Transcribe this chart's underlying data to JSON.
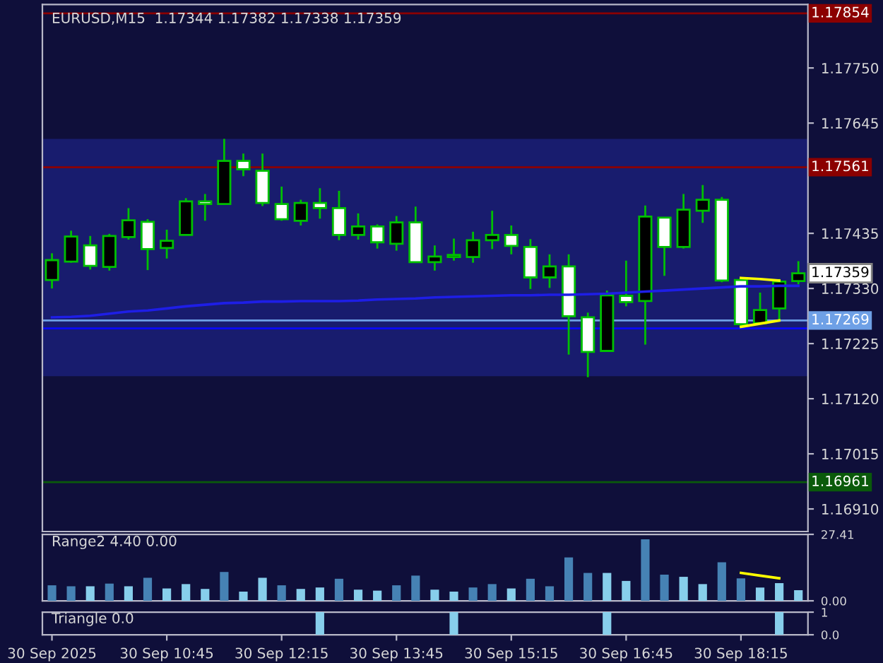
{
  "chart_data": [
    {
      "type": "candlestick",
      "title": "EURUSD,M15  1.17344 1.17382 1.17338 1.17359",
      "categories": [
        null,
        null,
        null,
        null,
        null,
        null,
        null,
        null,
        null,
        null,
        null,
        null,
        null,
        null,
        null,
        null,
        null,
        null,
        null,
        null,
        null,
        null,
        null,
        null,
        null,
        null,
        null,
        null,
        null,
        null,
        null,
        null,
        null,
        null,
        null,
        null,
        null,
        null,
        null,
        null
      ],
      "ohlc": [
        [
          1.17346,
          1.17397,
          1.1733,
          1.17384
        ],
        [
          1.17381,
          1.1744,
          1.17379,
          1.17429
        ],
        [
          1.17412,
          1.1743,
          1.17366,
          1.17373
        ],
        [
          1.17371,
          1.17434,
          1.17364,
          1.1743
        ],
        [
          1.17428,
          1.17483,
          1.17423,
          1.1746
        ],
        [
          1.17457,
          1.17462,
          1.17365,
          1.17405
        ],
        [
          1.17407,
          1.17442,
          1.17387,
          1.17421
        ],
        [
          1.17432,
          1.17502,
          1.17431,
          1.17496
        ],
        [
          1.17496,
          1.1751,
          1.17459,
          1.17491
        ],
        [
          1.17491,
          1.17615,
          1.17489,
          1.17573
        ],
        [
          1.17573,
          1.17587,
          1.17544,
          1.17557
        ],
        [
          1.17554,
          1.17587,
          1.17487,
          1.17493
        ],
        [
          1.17491,
          1.17524,
          1.17459,
          1.17462
        ],
        [
          1.17459,
          1.17499,
          1.1745,
          1.17493
        ],
        [
          1.17493,
          1.17521,
          1.17463,
          1.17483
        ],
        [
          1.17483,
          1.17516,
          1.17422,
          1.17432
        ],
        [
          1.17432,
          1.17473,
          1.17423,
          1.17448
        ],
        [
          1.17448,
          1.17452,
          1.17406,
          1.17418
        ],
        [
          1.17415,
          1.17468,
          1.17402,
          1.17456
        ],
        [
          1.17456,
          1.17486,
          1.1738,
          1.1738
        ],
        [
          1.1738,
          1.17412,
          1.17364,
          1.17391
        ],
        [
          1.1739,
          1.17425,
          1.17383,
          1.17394
        ],
        [
          1.1739,
          1.17438,
          1.17379,
          1.17422
        ],
        [
          1.17422,
          1.17478,
          1.17405,
          1.17432
        ],
        [
          1.17432,
          1.1745,
          1.17395,
          1.17411
        ],
        [
          1.17409,
          1.17424,
          1.17329,
          1.17351
        ],
        [
          1.17351,
          1.17395,
          1.17331,
          1.17372
        ],
        [
          1.17372,
          1.17395,
          1.17204,
          1.17277
        ],
        [
          1.17275,
          1.17284,
          1.17161,
          1.17209
        ],
        [
          1.17211,
          1.17326,
          1.17209,
          1.17317
        ],
        [
          1.17316,
          1.17383,
          1.17296,
          1.17304
        ],
        [
          1.17306,
          1.17488,
          1.17223,
          1.17467
        ],
        [
          1.17465,
          1.17465,
          1.17354,
          1.17409
        ],
        [
          1.17409,
          1.1751,
          1.17406,
          1.1748
        ],
        [
          1.17478,
          1.17527,
          1.17455,
          1.17499
        ],
        [
          1.17499,
          1.17504,
          1.17342,
          1.17345
        ],
        [
          1.17346,
          1.1735,
          1.17258,
          1.17262
        ],
        [
          1.17264,
          1.17322,
          1.17264,
          1.17289
        ],
        [
          1.17292,
          1.17348,
          1.17269,
          1.17343
        ],
        [
          1.17344,
          1.17382,
          1.17338,
          1.17359
        ]
      ],
      "series": [
        {
          "type": "line",
          "color": "#1e1ee6",
          "values": [
            1.17275,
            1.17276,
            1.17278,
            1.17282,
            1.17286,
            1.17288,
            1.17292,
            1.17296,
            1.17299,
            1.17302,
            1.17303,
            1.17305,
            1.17305,
            1.17306,
            1.17306,
            1.17306,
            1.17307,
            1.17309,
            1.1731,
            1.17311,
            1.17313,
            1.17314,
            1.17315,
            1.17316,
            1.17317,
            1.17317,
            1.17318,
            1.17318,
            1.17319,
            1.1732,
            1.17322,
            1.17324,
            1.17326,
            1.17328,
            1.1733,
            1.17332,
            1.17334,
            1.17334,
            1.17335,
            1.17335
          ]
        },
        {
          "type": "line",
          "color": "#ffff00",
          "values": [
            null,
            null,
            null,
            null,
            null,
            null,
            null,
            null,
            null,
            null,
            null,
            null,
            null,
            null,
            null,
            null,
            null,
            null,
            null,
            null,
            null,
            null,
            null,
            null,
            null,
            null,
            null,
            null,
            null,
            null,
            null,
            null,
            null,
            null,
            null,
            null,
            1.1735,
            1.17348,
            1.17345,
            null
          ]
        },
        {
          "type": "line",
          "color": "#ffff00",
          "values": [
            null,
            null,
            null,
            null,
            null,
            null,
            null,
            null,
            null,
            null,
            null,
            null,
            null,
            null,
            null,
            null,
            null,
            null,
            null,
            null,
            null,
            null,
            null,
            null,
            null,
            null,
            null,
            null,
            null,
            null,
            null,
            null,
            null,
            null,
            null,
            null,
            1.17257,
            1.17263,
            1.17269,
            null
          ]
        }
      ],
      "bands": [
        {
          "axis": "y",
          "from": 1.17163,
          "to": 1.17615,
          "color": "#181c6e"
        }
      ],
      "ref_lines": [
        {
          "axis": "y",
          "value": 1.17854,
          "label": "1.17854",
          "color": "#8b0000"
        },
        {
          "axis": "y",
          "value": 1.17561,
          "label": "1.17561",
          "color": "#8b0000"
        },
        {
          "axis": "y",
          "value": 1.17269,
          "label": "1.17269",
          "color": "#6ea0e6"
        },
        {
          "axis": "y",
          "value": 1.17254,
          "color": "#0a0aff"
        },
        {
          "axis": "y",
          "value": 1.16961,
          "label": "1.16961",
          "color": "#0a5a0a"
        }
      ],
      "annotations": [
        "1.17359"
      ],
      "ylim": [
        1.16867,
        1.17871
      ],
      "yticks": [
        {
          "value": 1.1691,
          "label": "1.16910"
        },
        {
          "value": 1.17015,
          "label": "1.17015"
        },
        {
          "value": 1.1712,
          "label": "1.17120"
        },
        {
          "value": 1.17225,
          "label": "1.17225"
        },
        {
          "value": 1.1733,
          "label": "1.17330"
        },
        {
          "value": 1.17435,
          "label": "1.17435"
        },
        {
          "value": 1.17645,
          "label": "1.17645"
        },
        {
          "value": 1.1775,
          "label": "1.17750"
        }
      ],
      "tick_labels": "y",
      "grid": false
    },
    {
      "type": "bar",
      "title": "Range2 4.40 0.00",
      "categories": [
        null,
        null,
        null,
        null,
        null,
        null,
        null,
        null,
        null,
        null,
        null,
        null,
        null,
        null,
        null,
        null,
        null,
        null,
        null,
        null,
        null,
        null,
        null,
        null,
        null,
        null,
        null,
        null,
        null,
        null,
        null,
        null,
        null,
        null,
        null,
        null,
        null,
        null,
        null,
        null
      ],
      "series": [
        {
          "type": "bar",
          "colors": [
            "#4682b4",
            "#4682b4",
            "#87ceeb",
            "#4682b4",
            "#87ceeb",
            "#4682b4",
            "#87ceeb",
            "#87ceeb",
            "#87ceeb",
            "#4682b4",
            "#87ceeb",
            "#87ceeb",
            "#4682b4",
            "#87ceeb",
            "#87ceeb",
            "#4682b4",
            "#87ceeb",
            "#87ceeb",
            "#4682b4",
            "#4682b4",
            "#87ceeb",
            "#87ceeb",
            "#4682b4",
            "#4682b4",
            "#87ceeb",
            "#4682b4",
            "#4682b4",
            "#4682b4",
            "#4682b4",
            "#87ceeb",
            "#87ceeb",
            "#4682b4",
            "#4682b4",
            "#87ceeb",
            "#87ceeb",
            "#4682b4",
            "#4682b4",
            "#87ceeb",
            "#87ceeb",
            "#87ceeb"
          ],
          "values": [
            6.4,
            6.0,
            6.0,
            7.1,
            6.0,
            9.5,
            5.1,
            6.9,
            4.9,
            11.9,
            3.8,
            9.5,
            6.4,
            4.9,
            5.5,
            9.1,
            4.6,
            4.2,
            6.4,
            10.4,
            4.6,
            3.8,
            5.5,
            6.9,
            5.1,
            9.1,
            6.0,
            17.9,
            11.5,
            11.5,
            8.2,
            25.4,
            10.8,
            9.9,
            6.9,
            15.9,
            9.3,
            5.5,
            7.3,
            4.4
          ]
        },
        {
          "type": "line",
          "color": "#ffff00",
          "values": [
            null,
            null,
            null,
            null,
            null,
            null,
            null,
            null,
            null,
            null,
            null,
            null,
            null,
            null,
            null,
            null,
            null,
            null,
            null,
            null,
            null,
            null,
            null,
            null,
            null,
            null,
            null,
            null,
            null,
            null,
            null,
            null,
            null,
            null,
            null,
            null,
            11.5,
            10.4,
            9.3,
            null
          ]
        }
      ],
      "ylim": [
        0,
        27.41
      ],
      "yticks": [
        {
          "value": 0,
          "label": "0.00"
        },
        27.41
      ],
      "tick_labels": "y",
      "grid": false
    },
    {
      "type": "bar",
      "title": "Triangle 0.0",
      "categories": [
        "30 Sep 2025",
        null,
        null,
        null,
        null,
        null,
        "30 Sep 10:45",
        null,
        null,
        null,
        null,
        null,
        "30 Sep 12:15",
        null,
        null,
        null,
        null,
        null,
        "30 Sep 13:45",
        null,
        null,
        null,
        null,
        null,
        "30 Sep 15:15",
        null,
        null,
        null,
        null,
        null,
        "30 Sep 16:45",
        null,
        null,
        null,
        null,
        null,
        "30 Sep 18:15",
        null,
        null,
        null
      ],
      "series": [
        {
          "type": "bar",
          "color": "#87ceeb",
          "values": [
            0,
            0,
            0,
            0,
            0,
            0,
            0,
            0,
            0,
            0,
            0,
            0,
            0,
            0,
            1,
            0,
            0,
            0,
            0,
            0,
            0,
            1,
            0,
            0,
            0,
            0,
            0,
            0,
            0,
            1,
            0,
            0,
            0,
            0,
            0,
            0,
            0,
            0,
            1,
            0
          ]
        }
      ],
      "ylim": [
        0,
        1
      ],
      "yticks": [
        {
          "value": 0,
          "label": "0.0"
        },
        1
      ],
      "grid": false
    }
  ]
}
